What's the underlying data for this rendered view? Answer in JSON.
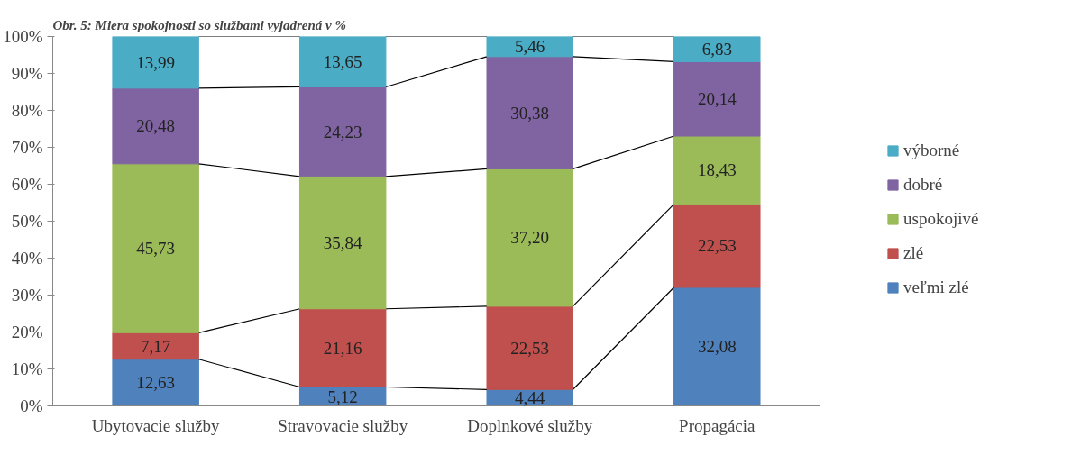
{
  "chart_data": {
    "type": "bar",
    "stacked": true,
    "title": "Obr. 5: Miera spokojnosti so službami vyjadrená v %",
    "categories": [
      "Ubytovacie služby",
      "Stravovacie služby",
      "Doplnkové služby",
      "Propagácia"
    ],
    "series": [
      {
        "name": "veľmi zlé",
        "color": "#4f81bd",
        "values": [
          12.63,
          5.12,
          4.44,
          32.08
        ],
        "value_labels": [
          "12,63",
          "5,12",
          "4,44",
          "32,08"
        ]
      },
      {
        "name": "zlé",
        "color": "#c0504d",
        "values": [
          7.17,
          21.16,
          22.53,
          22.53
        ],
        "value_labels": [
          "7,17",
          "21,16",
          "22,53",
          "22,53"
        ]
      },
      {
        "name": "uspokojivé",
        "color": "#9bbb59",
        "values": [
          45.73,
          35.84,
          37.2,
          18.43
        ],
        "value_labels": [
          "45,73",
          "35,84",
          "37,20",
          "18,43"
        ]
      },
      {
        "name": "dobré",
        "color": "#8064a2",
        "values": [
          20.48,
          24.23,
          30.38,
          20.14
        ],
        "value_labels": [
          "20,48",
          "24,23",
          "30,38",
          "20,14"
        ]
      },
      {
        "name": "výborné",
        "color": "#4bacc6",
        "values": [
          13.99,
          13.65,
          5.46,
          6.83
        ],
        "value_labels": [
          "13,99",
          "13,65",
          "5,46",
          "6,83"
        ]
      }
    ],
    "ylim": [
      0,
      100
    ],
    "yticks": [
      {
        "value": 0,
        "label": "0%"
      },
      {
        "value": 10,
        "label": "10%"
      },
      {
        "value": 20,
        "label": "20%"
      },
      {
        "value": 30,
        "label": "30%"
      },
      {
        "value": 40,
        "label": "40%"
      },
      {
        "value": 50,
        "label": "50%"
      },
      {
        "value": 60,
        "label": "60%"
      },
      {
        "value": 70,
        "label": "70%"
      },
      {
        "value": 80,
        "label": "80%"
      },
      {
        "value": 90,
        "label": "90%"
      },
      {
        "value": 100,
        "label": "100%"
      }
    ],
    "grid": false,
    "legend": "right"
  }
}
